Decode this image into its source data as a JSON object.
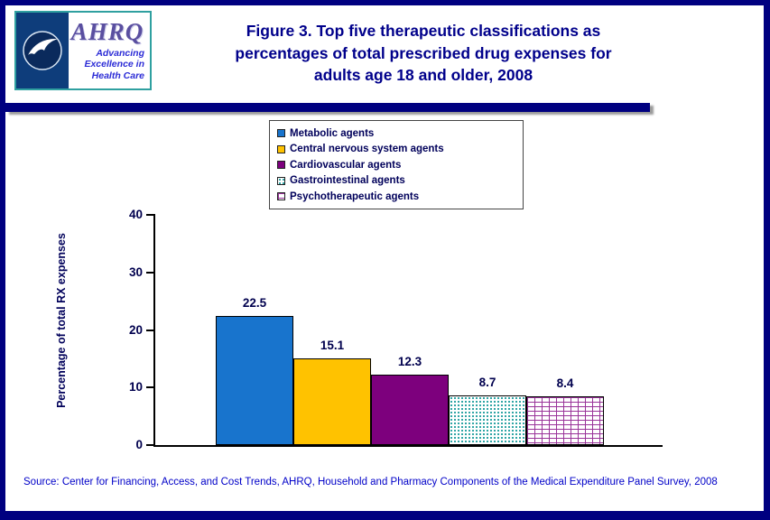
{
  "header": {
    "title_lines": [
      "Figure 3. Top five therapeutic classifications as",
      "percentages of total prescribed drug expenses for",
      "adults age 18 and older, 2008"
    ],
    "logo": {
      "acronym": "AHRQ",
      "tagline_lines": [
        "Advancing",
        "Excellence in",
        "Health Care"
      ],
      "seal_icon": "hhs-eagle-seal-icon"
    }
  },
  "footer": {
    "source": "Source: Center for Financing, Access, and Cost Trends, AHRQ, Household and Pharmacy Components of the Medical Expenditure Panel Survey, 2008"
  },
  "colors": {
    "border_navy": "#000080",
    "title_navy": "#00008B",
    "legend_text": "#00005A",
    "axis_text": "#00004E",
    "source_blue": "#0000C8"
  },
  "chart_data": {
    "type": "bar",
    "title": "Figure 3. Top five therapeutic classifications as percentages of total prescribed drug expenses for adults age 18 and older, 2008",
    "categories": [
      "Metabolic agents",
      "Central nervous system agents",
      "Cardiovascular agents",
      "Gastrointestinal agents",
      "Psychotherapeutic agents"
    ],
    "values": [
      22.5,
      15.1,
      12.3,
      8.7,
      8.4
    ],
    "value_labels": [
      "22.5",
      "15.1",
      "12.3",
      "8.7",
      "8.4"
    ],
    "xlabel": "",
    "ylabel": "Percentage of total RX expenses",
    "ylim": [
      0,
      40
    ],
    "yticks": [
      0,
      10,
      20,
      30,
      40
    ],
    "grid": false,
    "legend_position": "top-center",
    "bar_styles": [
      {
        "name": "Metabolic agents",
        "fill": "#1874CD",
        "pattern": "solid"
      },
      {
        "name": "Central nervous system agents",
        "fill": "#FFC200",
        "pattern": "solid"
      },
      {
        "name": "Cardiovascular agents",
        "fill": "#7D007D",
        "pattern": "solid"
      },
      {
        "name": "Gastrointestinal agents",
        "fill": "#1F9E9E",
        "pattern": "dots"
      },
      {
        "name": "Psychotherapeutic agents",
        "fill": "#993399",
        "pattern": "bricks"
      }
    ]
  }
}
